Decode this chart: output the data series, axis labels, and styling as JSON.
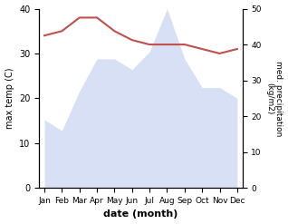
{
  "months": [
    "Jan",
    "Feb",
    "Mar",
    "Apr",
    "May",
    "Jun",
    "Jul",
    "Aug",
    "Sep",
    "Oct",
    "Nov",
    "Dec"
  ],
  "max_temp": [
    34,
    35,
    38,
    38,
    35,
    33,
    32,
    32,
    32,
    31,
    30,
    31
  ],
  "precipitation": [
    19,
    16,
    27,
    36,
    36,
    33,
    38,
    50,
    36,
    28,
    28,
    25
  ],
  "temp_color": "#c0504d",
  "precip_color": "#b8c8ee",
  "ylabel_left": "max temp (C)",
  "ylabel_right": "med. precipitation\n(kg/m2)",
  "xlabel": "date (month)",
  "ylim_left": [
    0,
    40
  ],
  "ylim_right": [
    0,
    50
  ],
  "bg_color": "#ffffff",
  "fig_color": "#ffffff"
}
